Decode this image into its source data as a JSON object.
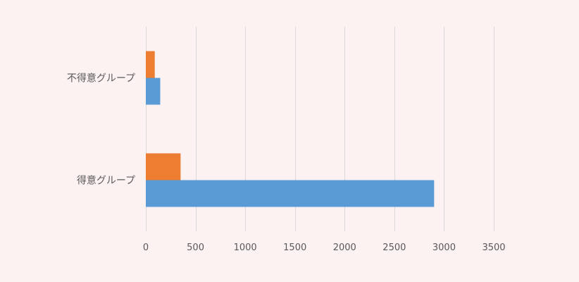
{
  "chart_data": {
    "type": "bar",
    "orientation": "horizontal",
    "categories": [
      "不得意グループ",
      "得意グループ"
    ],
    "series": [
      {
        "values": [
          145,
          2900
        ],
        "color": "#5b9bd5"
      },
      {
        "values": [
          90,
          350
        ],
        "color": "#ed7d31"
      }
    ],
    "xlim": [
      0,
      3500
    ],
    "xticks": [
      0,
      500,
      1000,
      1500,
      2000,
      2500,
      3000,
      3500
    ],
    "grid": true,
    "legend": "none",
    "title": "",
    "xlabel": "",
    "ylabel": ""
  },
  "colors": {
    "background": "#fdf2f2",
    "grid": "#d9d9d9",
    "text": "#595959"
  }
}
